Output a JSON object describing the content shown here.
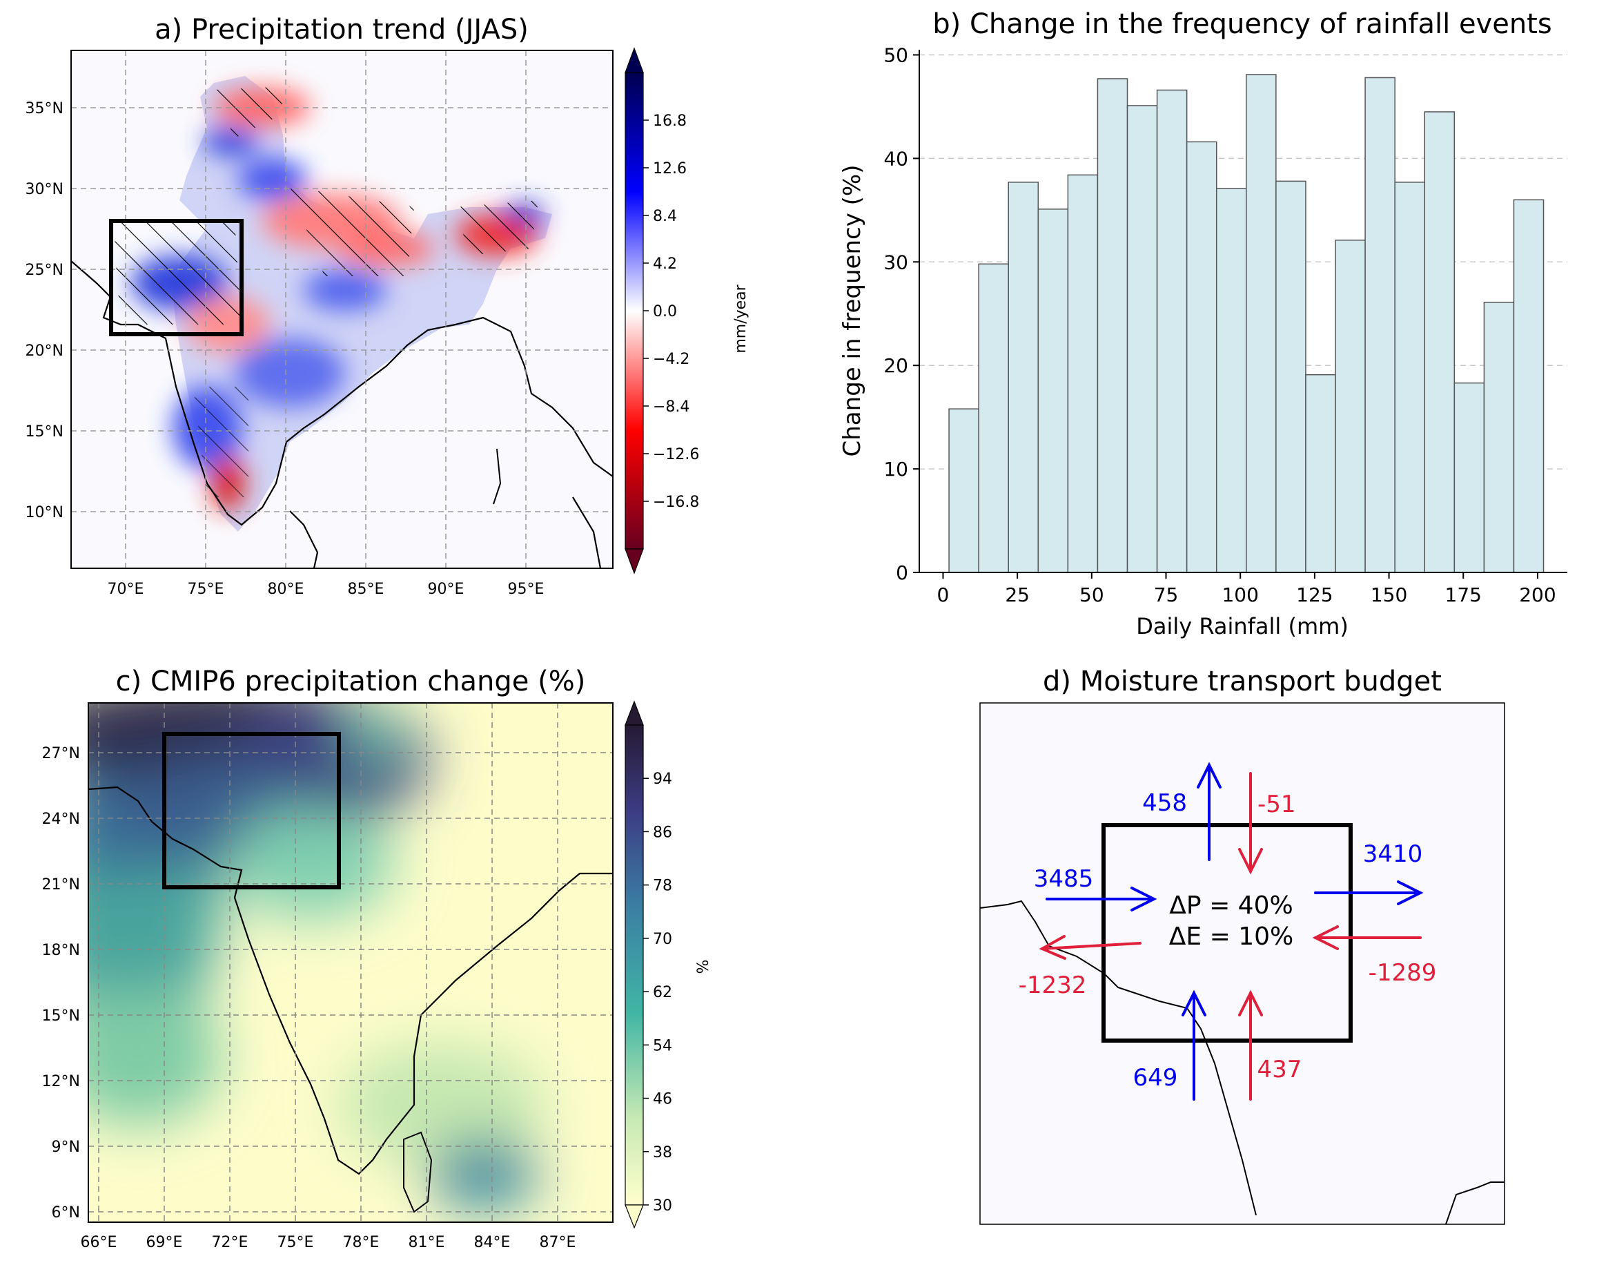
{
  "chart_data": [
    {
      "type": "heatmap",
      "title": "a) Precipitation trend (JJAS)",
      "x_ticks": [
        "70°E",
        "75°E",
        "80°E",
        "85°E",
        "90°E",
        "95°E"
      ],
      "y_ticks": [
        "35°N",
        "30°N",
        "25°N",
        "20°N",
        "15°N",
        "10°N"
      ],
      "xlim": [
        66.5,
        100
      ],
      "ylim": [
        7,
        39
      ],
      "colorbar": {
        "label": "mm/year",
        "ticks": [
          "16.8",
          "12.6",
          "8.4",
          "4.2",
          "0.0",
          "−4.2",
          "−8.4",
          "−12.6",
          "−16.8"
        ],
        "range": [
          -21,
          21
        ],
        "colors": [
          "#67001f",
          "#ff0000",
          "#ffffff",
          "#0000ff",
          "#000050"
        ]
      },
      "box": {
        "lon": [
          69,
          77
        ],
        "lat": [
          21,
          28
        ]
      }
    },
    {
      "type": "bar",
      "title": "b) Change in the frequency of rainfall events",
      "xlabel": "Daily Rainfall (mm)",
      "ylabel": "Change in frequency (%)",
      "x_ticks": [
        "0",
        "25",
        "50",
        "75",
        "100",
        "125",
        "150",
        "175",
        "200"
      ],
      "y_ticks": [
        "0",
        "10",
        "20",
        "30",
        "40",
        "50"
      ],
      "xlim": [
        -8,
        210
      ],
      "ylim": [
        0,
        50.5
      ],
      "bin_edges": [
        2,
        12,
        22,
        32,
        42,
        52,
        62,
        72,
        82,
        92,
        102,
        112,
        122,
        132,
        142,
        152,
        162,
        172,
        182,
        192,
        202
      ],
      "values": [
        15.8,
        29.8,
        37.7,
        35.1,
        38.4,
        47.7,
        45.1,
        46.6,
        41.6,
        37.1,
        48.1,
        37.8,
        19.1,
        32.1,
        47.8,
        37.7,
        44.5,
        18.3,
        26.1,
        36.0
      ],
      "bar_color": "#d5eaef",
      "grid": "y"
    },
    {
      "type": "heatmap",
      "title": "c) CMIP6 precipitation change (%)",
      "x_ticks": [
        "66°E",
        "69°E",
        "72°E",
        "75°E",
        "78°E",
        "81°E",
        "84°E",
        "87°E"
      ],
      "y_ticks": [
        "27°N",
        "24°N",
        "21°N",
        "18°N",
        "15°N",
        "12°N",
        "9°N",
        "6°N"
      ],
      "xlim": [
        65.5,
        89.5
      ],
      "ylim": [
        5.6,
        29.5
      ],
      "colorbar": {
        "label": "%",
        "ticks": [
          "94",
          "86",
          "78",
          "70",
          "62",
          "54",
          "46",
          "38",
          "30"
        ],
        "range": [
          30,
          102
        ],
        "colors": [
          "#ffffcc",
          "#c7e9b4",
          "#41b6a4",
          "#3b7fa3",
          "#3c3c84",
          "#261a33"
        ]
      },
      "box": {
        "lon": [
          69,
          77
        ],
        "lat": [
          21,
          28
        ]
      }
    },
    {
      "type": "diagram",
      "title": "d) Moisture transport budget",
      "inflow_color": "#0000ee",
      "outflow_color": "#e0203a",
      "arrows": {
        "north_up": "458",
        "north_down": "-51",
        "west_in": "3485",
        "west_out": "-1232",
        "east_out": "3410",
        "east_in": "-1289",
        "south_up_blue": "649",
        "south_up_red": "437"
      },
      "delta_p": "ΔP = 40%",
      "delta_e": "ΔE = 10%"
    }
  ]
}
